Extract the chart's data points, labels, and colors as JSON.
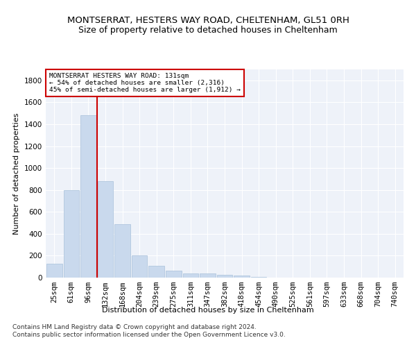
{
  "title": "MONTSERRAT, HESTERS WAY ROAD, CHELTENHAM, GL51 0RH",
  "subtitle": "Size of property relative to detached houses in Cheltenham",
  "xlabel": "Distribution of detached houses by size in Cheltenham",
  "ylabel": "Number of detached properties",
  "categories": [
    "25sqm",
    "61sqm",
    "96sqm",
    "132sqm",
    "168sqm",
    "204sqm",
    "239sqm",
    "275sqm",
    "311sqm",
    "347sqm",
    "382sqm",
    "418sqm",
    "454sqm",
    "490sqm",
    "525sqm",
    "561sqm",
    "597sqm",
    "633sqm",
    "668sqm",
    "704sqm",
    "740sqm"
  ],
  "values": [
    125,
    800,
    1480,
    880,
    490,
    205,
    105,
    65,
    40,
    35,
    25,
    20,
    5,
    3,
    2,
    2,
    2,
    2,
    2,
    2,
    2
  ],
  "bar_color": "#c9d9ed",
  "bar_edge_color": "#a8c0da",
  "vline_color": "#cc0000",
  "annotation_text": "MONTSERRAT HESTERS WAY ROAD: 131sqm\n← 54% of detached houses are smaller (2,316)\n45% of semi-detached houses are larger (1,912) →",
  "annotation_box_color": "#ffffff",
  "annotation_border_color": "#cc0000",
  "ylim": [
    0,
    1900
  ],
  "yticks": [
    0,
    200,
    400,
    600,
    800,
    1000,
    1200,
    1400,
    1600,
    1800
  ],
  "footer_text": "Contains HM Land Registry data © Crown copyright and database right 2024.\nContains public sector information licensed under the Open Government Licence v3.0.",
  "background_color": "#eef2f9",
  "grid_color": "#ffffff",
  "title_fontsize": 9.5,
  "subtitle_fontsize": 9,
  "label_fontsize": 8,
  "tick_fontsize": 7.5,
  "footer_fontsize": 6.5
}
